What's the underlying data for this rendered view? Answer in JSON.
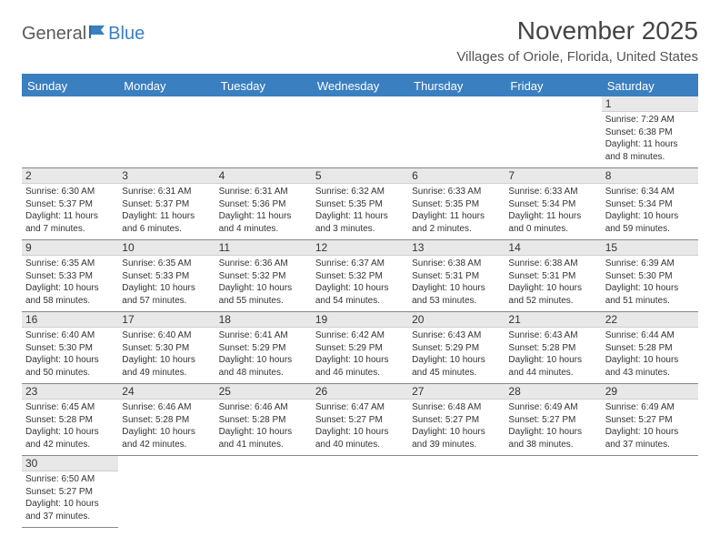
{
  "brand": {
    "part1": "General",
    "part2": "Blue"
  },
  "title": "November 2025",
  "location": "Villages of Oriole, Florida, United States",
  "colors": {
    "header_bg": "#3a7fc0",
    "header_text": "#ffffff",
    "daynum_bg": "#e8e8e8",
    "border": "#888888",
    "logo_gray": "#5a5a5a",
    "logo_blue": "#3a7fc0"
  },
  "weekdays": [
    "Sunday",
    "Monday",
    "Tuesday",
    "Wednesday",
    "Thursday",
    "Friday",
    "Saturday"
  ],
  "weeks": [
    [
      null,
      null,
      null,
      null,
      null,
      null,
      {
        "n": "1",
        "sr": "Sunrise: 7:29 AM",
        "ss": "Sunset: 6:38 PM",
        "dl": "Daylight: 11 hours and 8 minutes."
      }
    ],
    [
      {
        "n": "2",
        "sr": "Sunrise: 6:30 AM",
        "ss": "Sunset: 5:37 PM",
        "dl": "Daylight: 11 hours and 7 minutes."
      },
      {
        "n": "3",
        "sr": "Sunrise: 6:31 AM",
        "ss": "Sunset: 5:37 PM",
        "dl": "Daylight: 11 hours and 6 minutes."
      },
      {
        "n": "4",
        "sr": "Sunrise: 6:31 AM",
        "ss": "Sunset: 5:36 PM",
        "dl": "Daylight: 11 hours and 4 minutes."
      },
      {
        "n": "5",
        "sr": "Sunrise: 6:32 AM",
        "ss": "Sunset: 5:35 PM",
        "dl": "Daylight: 11 hours and 3 minutes."
      },
      {
        "n": "6",
        "sr": "Sunrise: 6:33 AM",
        "ss": "Sunset: 5:35 PM",
        "dl": "Daylight: 11 hours and 2 minutes."
      },
      {
        "n": "7",
        "sr": "Sunrise: 6:33 AM",
        "ss": "Sunset: 5:34 PM",
        "dl": "Daylight: 11 hours and 0 minutes."
      },
      {
        "n": "8",
        "sr": "Sunrise: 6:34 AM",
        "ss": "Sunset: 5:34 PM",
        "dl": "Daylight: 10 hours and 59 minutes."
      }
    ],
    [
      {
        "n": "9",
        "sr": "Sunrise: 6:35 AM",
        "ss": "Sunset: 5:33 PM",
        "dl": "Daylight: 10 hours and 58 minutes."
      },
      {
        "n": "10",
        "sr": "Sunrise: 6:35 AM",
        "ss": "Sunset: 5:33 PM",
        "dl": "Daylight: 10 hours and 57 minutes."
      },
      {
        "n": "11",
        "sr": "Sunrise: 6:36 AM",
        "ss": "Sunset: 5:32 PM",
        "dl": "Daylight: 10 hours and 55 minutes."
      },
      {
        "n": "12",
        "sr": "Sunrise: 6:37 AM",
        "ss": "Sunset: 5:32 PM",
        "dl": "Daylight: 10 hours and 54 minutes."
      },
      {
        "n": "13",
        "sr": "Sunrise: 6:38 AM",
        "ss": "Sunset: 5:31 PM",
        "dl": "Daylight: 10 hours and 53 minutes."
      },
      {
        "n": "14",
        "sr": "Sunrise: 6:38 AM",
        "ss": "Sunset: 5:31 PM",
        "dl": "Daylight: 10 hours and 52 minutes."
      },
      {
        "n": "15",
        "sr": "Sunrise: 6:39 AM",
        "ss": "Sunset: 5:30 PM",
        "dl": "Daylight: 10 hours and 51 minutes."
      }
    ],
    [
      {
        "n": "16",
        "sr": "Sunrise: 6:40 AM",
        "ss": "Sunset: 5:30 PM",
        "dl": "Daylight: 10 hours and 50 minutes."
      },
      {
        "n": "17",
        "sr": "Sunrise: 6:40 AM",
        "ss": "Sunset: 5:30 PM",
        "dl": "Daylight: 10 hours and 49 minutes."
      },
      {
        "n": "18",
        "sr": "Sunrise: 6:41 AM",
        "ss": "Sunset: 5:29 PM",
        "dl": "Daylight: 10 hours and 48 minutes."
      },
      {
        "n": "19",
        "sr": "Sunrise: 6:42 AM",
        "ss": "Sunset: 5:29 PM",
        "dl": "Daylight: 10 hours and 46 minutes."
      },
      {
        "n": "20",
        "sr": "Sunrise: 6:43 AM",
        "ss": "Sunset: 5:29 PM",
        "dl": "Daylight: 10 hours and 45 minutes."
      },
      {
        "n": "21",
        "sr": "Sunrise: 6:43 AM",
        "ss": "Sunset: 5:28 PM",
        "dl": "Daylight: 10 hours and 44 minutes."
      },
      {
        "n": "22",
        "sr": "Sunrise: 6:44 AM",
        "ss": "Sunset: 5:28 PM",
        "dl": "Daylight: 10 hours and 43 minutes."
      }
    ],
    [
      {
        "n": "23",
        "sr": "Sunrise: 6:45 AM",
        "ss": "Sunset: 5:28 PM",
        "dl": "Daylight: 10 hours and 42 minutes."
      },
      {
        "n": "24",
        "sr": "Sunrise: 6:46 AM",
        "ss": "Sunset: 5:28 PM",
        "dl": "Daylight: 10 hours and 42 minutes."
      },
      {
        "n": "25",
        "sr": "Sunrise: 6:46 AM",
        "ss": "Sunset: 5:28 PM",
        "dl": "Daylight: 10 hours and 41 minutes."
      },
      {
        "n": "26",
        "sr": "Sunrise: 6:47 AM",
        "ss": "Sunset: 5:27 PM",
        "dl": "Daylight: 10 hours and 40 minutes."
      },
      {
        "n": "27",
        "sr": "Sunrise: 6:48 AM",
        "ss": "Sunset: 5:27 PM",
        "dl": "Daylight: 10 hours and 39 minutes."
      },
      {
        "n": "28",
        "sr": "Sunrise: 6:49 AM",
        "ss": "Sunset: 5:27 PM",
        "dl": "Daylight: 10 hours and 38 minutes."
      },
      {
        "n": "29",
        "sr": "Sunrise: 6:49 AM",
        "ss": "Sunset: 5:27 PM",
        "dl": "Daylight: 10 hours and 37 minutes."
      }
    ],
    [
      {
        "n": "30",
        "sr": "Sunrise: 6:50 AM",
        "ss": "Sunset: 5:27 PM",
        "dl": "Daylight: 10 hours and 37 minutes."
      },
      null,
      null,
      null,
      null,
      null,
      null
    ]
  ]
}
